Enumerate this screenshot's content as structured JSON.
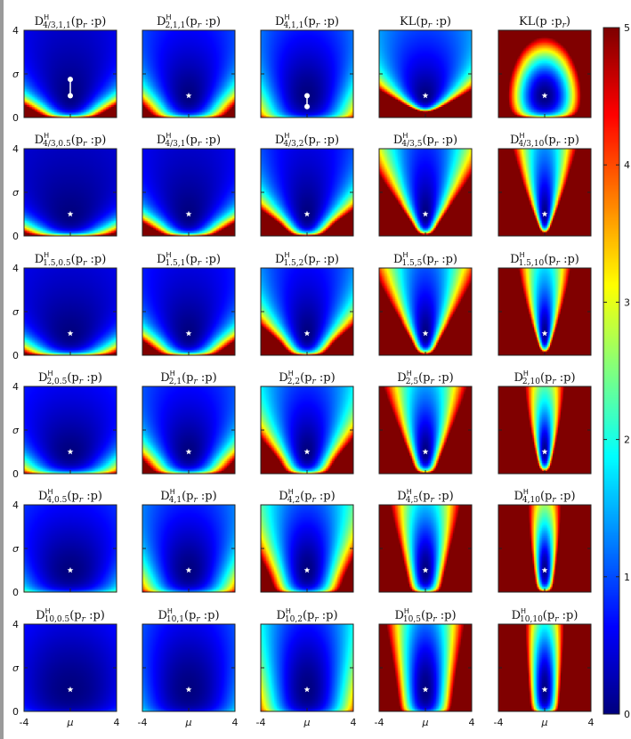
{
  "chart_data": {
    "type": "heatmap",
    "grid": {
      "rows": 6,
      "cols": 5
    },
    "xlabel": "μ",
    "ylabel": "σ",
    "xlim": [
      -4,
      4
    ],
    "ylim": [
      0,
      4
    ],
    "xticks": [
      "-4",
      "μ",
      "4"
    ],
    "yticks": [
      "4",
      "σ",
      "0"
    ],
    "colorbar": {
      "min": 0,
      "max": 5,
      "ticks": [
        "5",
        "4",
        "3",
        "2",
        "1",
        "0"
      ],
      "colormap": "jet"
    },
    "reference_point": {
      "mu": 0,
      "sigma": 1
    },
    "panels": [
      {
        "id": "r0c0",
        "kind": "hmh",
        "alpha": 1.333,
        "beta": 1,
        "gamma": 1,
        "title": {
          "base": "D",
          "sup": "H",
          "sub": "4/3,1,1",
          "arg": "(p",
          "argsub": "r",
          "argend": " :p)"
        },
        "markers": [
          {
            "mu": 0,
            "sigma": 1
          },
          {
            "mu": 0,
            "sigma": 1.75
          }
        ]
      },
      {
        "id": "r0c1",
        "kind": "hmh",
        "alpha": 2,
        "beta": 1,
        "gamma": 1,
        "title": {
          "base": "D",
          "sup": "H",
          "sub": "2,1,1",
          "arg": "(p",
          "argsub": "r",
          "argend": " :p)"
        },
        "markers": [
          {
            "mu": 0,
            "sigma": 1
          }
        ]
      },
      {
        "id": "r0c2",
        "kind": "hmh",
        "alpha": 4,
        "beta": 1,
        "gamma": 1,
        "title": {
          "base": "D",
          "sup": "H",
          "sub": "4,1,1",
          "arg": "(p",
          "argsub": "r",
          "argend": " :p)"
        },
        "markers": [
          {
            "mu": 0,
            "sigma": 1
          },
          {
            "mu": 0,
            "sigma": 0.5
          }
        ]
      },
      {
        "id": "r0c3",
        "kind": "kl",
        "title": {
          "base": "KL",
          "sup": "",
          "sub": "",
          "arg": "(p",
          "argsub": "r",
          "argend": " :p)"
        },
        "markers": [
          {
            "mu": 0,
            "sigma": 1
          }
        ]
      },
      {
        "id": "r0c4",
        "kind": "klrev",
        "title": {
          "base": "KL",
          "sup": "",
          "sub": "",
          "arg": "(p :p",
          "argsub": "r",
          "argend": ")"
        },
        "markers": [
          {
            "mu": 0,
            "sigma": 1
          }
        ]
      },
      {
        "id": "r1c0",
        "kind": "h",
        "alpha": 1.333,
        "gamma": 0.5,
        "title": {
          "base": "D",
          "sup": "H",
          "sub": "4/3,0.5",
          "arg": "(p",
          "argsub": "r",
          "argend": " :p)"
        },
        "markers": [
          {
            "mu": 0,
            "sigma": 1
          }
        ]
      },
      {
        "id": "r1c1",
        "kind": "h",
        "alpha": 1.333,
        "gamma": 1,
        "title": {
          "base": "D",
          "sup": "H",
          "sub": "4/3,1",
          "arg": "(p",
          "argsub": "r",
          "argend": " :p)"
        },
        "markers": [
          {
            "mu": 0,
            "sigma": 1
          }
        ]
      },
      {
        "id": "r1c2",
        "kind": "h",
        "alpha": 1.333,
        "gamma": 2,
        "title": {
          "base": "D",
          "sup": "H",
          "sub": "4/3,2",
          "arg": "(p",
          "argsub": "r",
          "argend": " :p)"
        },
        "markers": [
          {
            "mu": 0,
            "sigma": 1
          }
        ]
      },
      {
        "id": "r1c3",
        "kind": "h",
        "alpha": 1.333,
        "gamma": 5,
        "title": {
          "base": "D",
          "sup": "H",
          "sub": "4/3,5",
          "arg": "(p",
          "argsub": "r",
          "argend": " :p)"
        },
        "markers": [
          {
            "mu": 0,
            "sigma": 1
          }
        ]
      },
      {
        "id": "r1c4",
        "kind": "h",
        "alpha": 1.333,
        "gamma": 10,
        "title": {
          "base": "D",
          "sup": "H",
          "sub": "4/3,10",
          "arg": "(p",
          "argsub": "r",
          "argend": " :p)"
        },
        "markers": [
          {
            "mu": 0,
            "sigma": 1
          }
        ]
      },
      {
        "id": "r2c0",
        "kind": "h",
        "alpha": 1.5,
        "gamma": 0.5,
        "title": {
          "base": "D",
          "sup": "H",
          "sub": "1.5,0.5",
          "arg": "(p",
          "argsub": "r",
          "argend": " :p)"
        },
        "markers": [
          {
            "mu": 0,
            "sigma": 1
          }
        ]
      },
      {
        "id": "r2c1",
        "kind": "h",
        "alpha": 1.5,
        "gamma": 1,
        "title": {
          "base": "D",
          "sup": "H",
          "sub": "1.5,1",
          "arg": "(p",
          "argsub": "r",
          "argend": " :p)"
        },
        "markers": [
          {
            "mu": 0,
            "sigma": 1
          }
        ]
      },
      {
        "id": "r2c2",
        "kind": "h",
        "alpha": 1.5,
        "gamma": 2,
        "title": {
          "base": "D",
          "sup": "H",
          "sub": "1.5,2",
          "arg": "(p",
          "argsub": "r",
          "argend": " :p)"
        },
        "markers": [
          {
            "mu": 0,
            "sigma": 1
          }
        ]
      },
      {
        "id": "r2c3",
        "kind": "h",
        "alpha": 1.5,
        "gamma": 5,
        "title": {
          "base": "D",
          "sup": "H",
          "sub": "1.5,5",
          "arg": "(p",
          "argsub": "r",
          "argend": " :p)"
        },
        "markers": [
          {
            "mu": 0,
            "sigma": 1
          }
        ]
      },
      {
        "id": "r2c4",
        "kind": "h",
        "alpha": 1.5,
        "gamma": 10,
        "title": {
          "base": "D",
          "sup": "H",
          "sub": "1.5,10",
          "arg": "(p",
          "argsub": "r",
          "argend": " :p)"
        },
        "markers": [
          {
            "mu": 0,
            "sigma": 1
          }
        ]
      },
      {
        "id": "r3c0",
        "kind": "h",
        "alpha": 2,
        "gamma": 0.5,
        "title": {
          "base": "D",
          "sup": "H",
          "sub": "2,0.5",
          "arg": "(p",
          "argsub": "r",
          "argend": " :p)"
        },
        "markers": [
          {
            "mu": 0,
            "sigma": 1
          }
        ]
      },
      {
        "id": "r3c1",
        "kind": "h",
        "alpha": 2,
        "gamma": 1,
        "title": {
          "base": "D",
          "sup": "H",
          "sub": "2,1",
          "arg": "(p",
          "argsub": "r",
          "argend": " :p)"
        },
        "markers": [
          {
            "mu": 0,
            "sigma": 1
          }
        ]
      },
      {
        "id": "r3c2",
        "kind": "h",
        "alpha": 2,
        "gamma": 2,
        "title": {
          "base": "D",
          "sup": "H",
          "sub": "2,2",
          "arg": "(p",
          "argsub": "r",
          "argend": " :p)"
        },
        "markers": [
          {
            "mu": 0,
            "sigma": 1
          }
        ]
      },
      {
        "id": "r3c3",
        "kind": "h",
        "alpha": 2,
        "gamma": 5,
        "title": {
          "base": "D",
          "sup": "H",
          "sub": "2,5",
          "arg": "(p",
          "argsub": "r",
          "argend": " :p)"
        },
        "markers": [
          {
            "mu": 0,
            "sigma": 1
          }
        ]
      },
      {
        "id": "r3c4",
        "kind": "h",
        "alpha": 2,
        "gamma": 10,
        "title": {
          "base": "D",
          "sup": "H",
          "sub": "2,10",
          "arg": "(p",
          "argsub": "r",
          "argend": " :p)"
        },
        "markers": [
          {
            "mu": 0,
            "sigma": 1
          }
        ]
      },
      {
        "id": "r4c0",
        "kind": "h",
        "alpha": 4,
        "gamma": 0.5,
        "title": {
          "base": "D",
          "sup": "H",
          "sub": "4,0.5",
          "arg": "(p",
          "argsub": "r",
          "argend": " :p)"
        },
        "markers": [
          {
            "mu": 0,
            "sigma": 1
          }
        ]
      },
      {
        "id": "r4c1",
        "kind": "h",
        "alpha": 4,
        "gamma": 1,
        "title": {
          "base": "D",
          "sup": "H",
          "sub": "4,1",
          "arg": "(p",
          "argsub": "r",
          "argend": " :p)"
        },
        "markers": [
          {
            "mu": 0,
            "sigma": 1
          }
        ]
      },
      {
        "id": "r4c2",
        "kind": "h",
        "alpha": 4,
        "gamma": 2,
        "title": {
          "base": "D",
          "sup": "H",
          "sub": "4,2",
          "arg": "(p",
          "argsub": "r",
          "argend": " :p)"
        },
        "markers": [
          {
            "mu": 0,
            "sigma": 1
          }
        ]
      },
      {
        "id": "r4c3",
        "kind": "h",
        "alpha": 4,
        "gamma": 5,
        "title": {
          "base": "D",
          "sup": "H",
          "sub": "4,5",
          "arg": "(p",
          "argsub": "r",
          "argend": " :p)"
        },
        "markers": [
          {
            "mu": 0,
            "sigma": 1
          }
        ]
      },
      {
        "id": "r4c4",
        "kind": "h",
        "alpha": 4,
        "gamma": 10,
        "title": {
          "base": "D",
          "sup": "H",
          "sub": "4,10",
          "arg": "(p",
          "argsub": "r",
          "argend": " :p)"
        },
        "markers": [
          {
            "mu": 0,
            "sigma": 1
          }
        ]
      },
      {
        "id": "r5c0",
        "kind": "h",
        "alpha": 10,
        "gamma": 0.5,
        "title": {
          "base": "D",
          "sup": "H",
          "sub": "10,0.5",
          "arg": "(p",
          "argsub": "r",
          "argend": " :p)"
        },
        "markers": [
          {
            "mu": 0,
            "sigma": 1
          }
        ]
      },
      {
        "id": "r5c1",
        "kind": "h",
        "alpha": 10,
        "gamma": 1,
        "title": {
          "base": "D",
          "sup": "H",
          "sub": "10,1",
          "arg": "(p",
          "argsub": "r",
          "argend": " :p)"
        },
        "markers": [
          {
            "mu": 0,
            "sigma": 1
          }
        ]
      },
      {
        "id": "r5c2",
        "kind": "h",
        "alpha": 10,
        "gamma": 2,
        "title": {
          "base": "D",
          "sup": "H",
          "sub": "10,2",
          "arg": "(p",
          "argsub": "r",
          "argend": " :p)"
        },
        "markers": [
          {
            "mu": 0,
            "sigma": 1
          }
        ]
      },
      {
        "id": "r5c3",
        "kind": "h",
        "alpha": 10,
        "gamma": 5,
        "title": {
          "base": "D",
          "sup": "H",
          "sub": "10,5",
          "arg": "(p",
          "argsub": "r",
          "argend": " :p)"
        },
        "markers": [
          {
            "mu": 0,
            "sigma": 1
          }
        ]
      },
      {
        "id": "r5c4",
        "kind": "h",
        "alpha": 10,
        "gamma": 10,
        "title": {
          "base": "D",
          "sup": "H",
          "sub": "10,10",
          "arg": "(p",
          "argsub": "r",
          "argend": " :p)"
        },
        "markers": [
          {
            "mu": 0,
            "sigma": 1
          }
        ]
      }
    ]
  }
}
